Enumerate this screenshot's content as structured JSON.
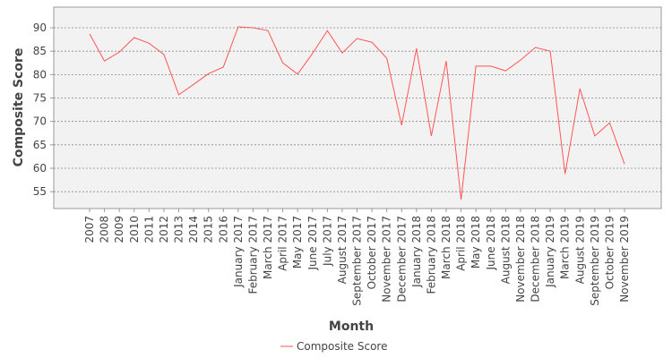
{
  "chart_data": {
    "type": "line",
    "x_label": "Month",
    "y_label": "Composite Score",
    "categories": [
      "2007",
      "2008",
      "2009",
      "2010",
      "2011",
      "2012",
      "2013",
      "2014",
      "2015",
      "2016",
      "January 2017",
      "February 2017",
      "March 2017",
      "April 2017",
      "May 2017",
      "June 2017",
      "July 2017",
      "August 2017",
      "September 2017",
      "October 2017",
      "November 2017",
      "December 2017",
      "January 2018",
      "February 2018",
      "March 2018",
      "April 2018",
      "May 2018",
      "June 2018",
      "August 2018",
      "November 2018",
      "December 2018",
      "January 2019",
      "March 2019",
      "August 2019",
      "September 2019",
      "October 2019",
      "November 2019"
    ],
    "series": [
      {
        "name": "Composite Score",
        "color": "#ff5555",
        "values": [
          88.7,
          82.9,
          84.8,
          87.9,
          86.7,
          84.3,
          75.7,
          77.9,
          80.2,
          81.6,
          90.2,
          90.0,
          89.4,
          82.5,
          80.1,
          84.5,
          89.4,
          84.6,
          87.7,
          86.9,
          83.5,
          69.2,
          85.6,
          66.9,
          82.9,
          53.3,
          81.8,
          81.8,
          80.8,
          83.1,
          85.8,
          85.0,
          58.8,
          77.0,
          66.9,
          69.7,
          60.9
        ]
      }
    ],
    "ylim": [
      51.4,
      94.4
    ],
    "yticks": [
      55,
      60,
      65,
      70,
      75,
      80,
      85,
      90
    ],
    "grid": true,
    "legend": "bottom"
  }
}
